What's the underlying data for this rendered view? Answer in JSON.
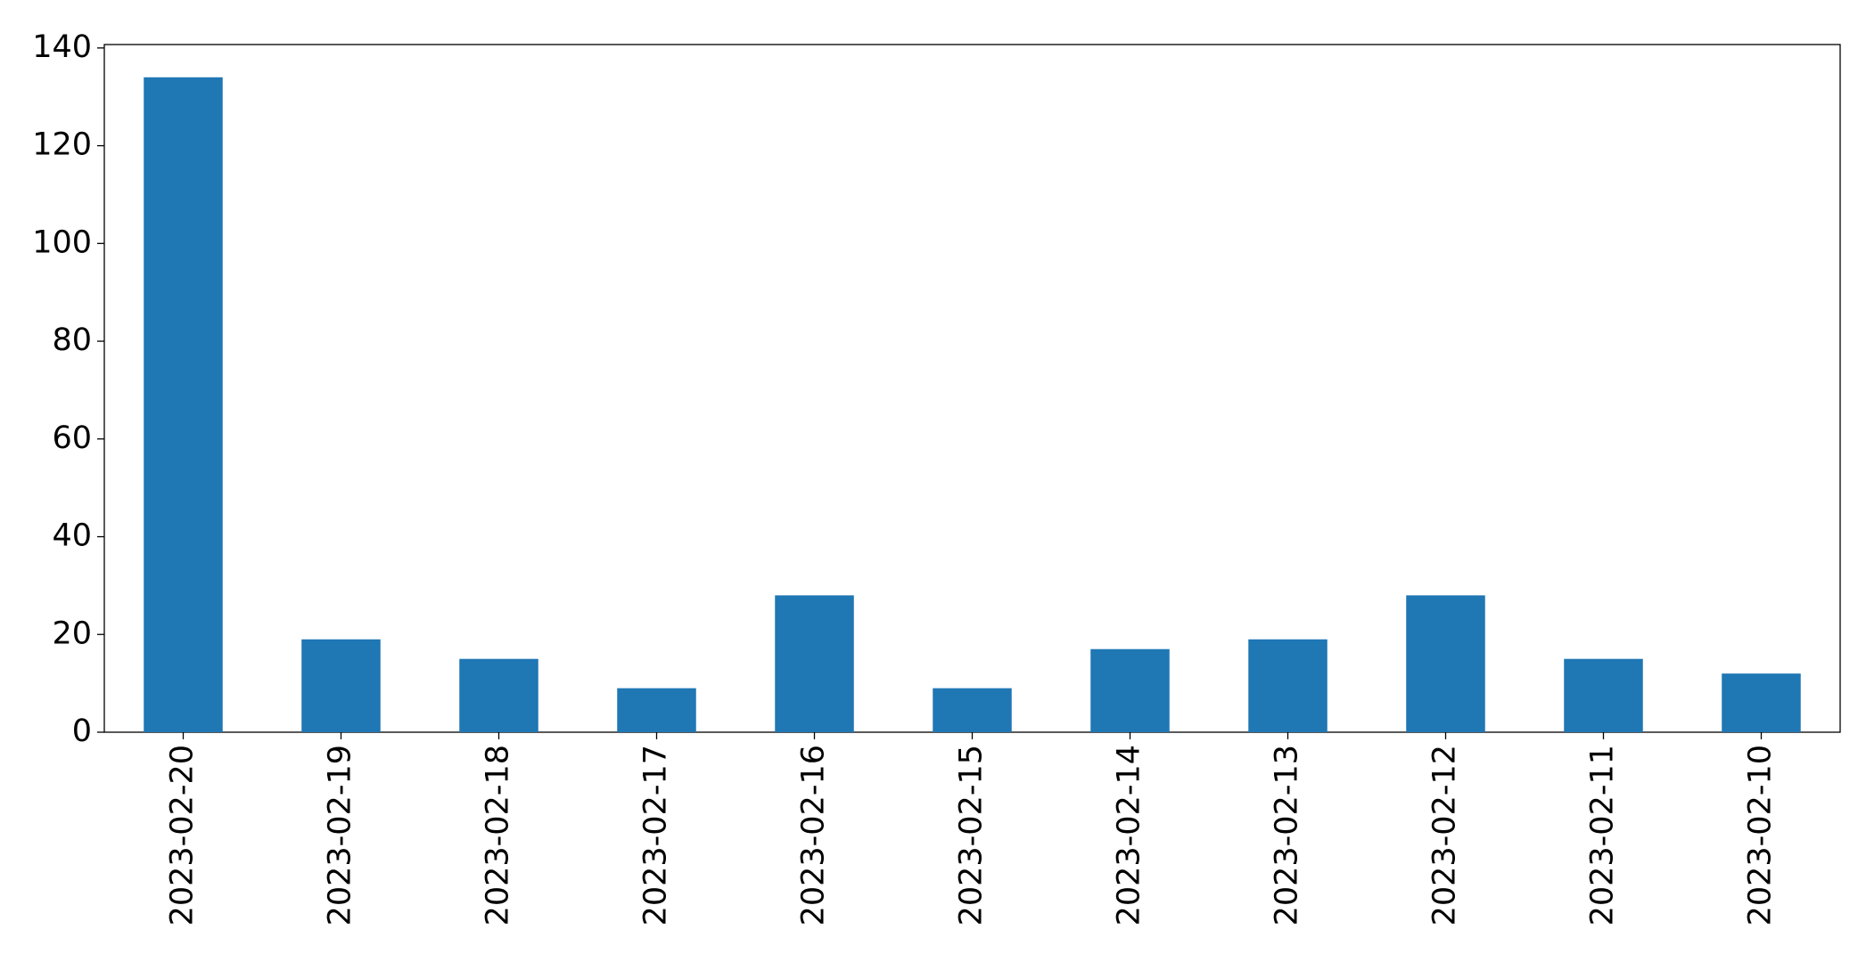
{
  "chart_data": {
    "type": "bar",
    "categories": [
      "2023-02-20",
      "2023-02-19",
      "2023-02-18",
      "2023-02-17",
      "2023-02-16",
      "2023-02-15",
      "2023-02-14",
      "2023-02-13",
      "2023-02-12",
      "2023-02-11",
      "2023-02-10"
    ],
    "values": [
      134,
      19,
      15,
      9,
      28,
      9,
      17,
      19,
      28,
      15,
      12
    ],
    "color": "#1f77b4",
    "ylim": [
      0,
      140.7
    ],
    "yticks": [
      0,
      20,
      40,
      60,
      80,
      100,
      120,
      140
    ],
    "grid": false
  }
}
